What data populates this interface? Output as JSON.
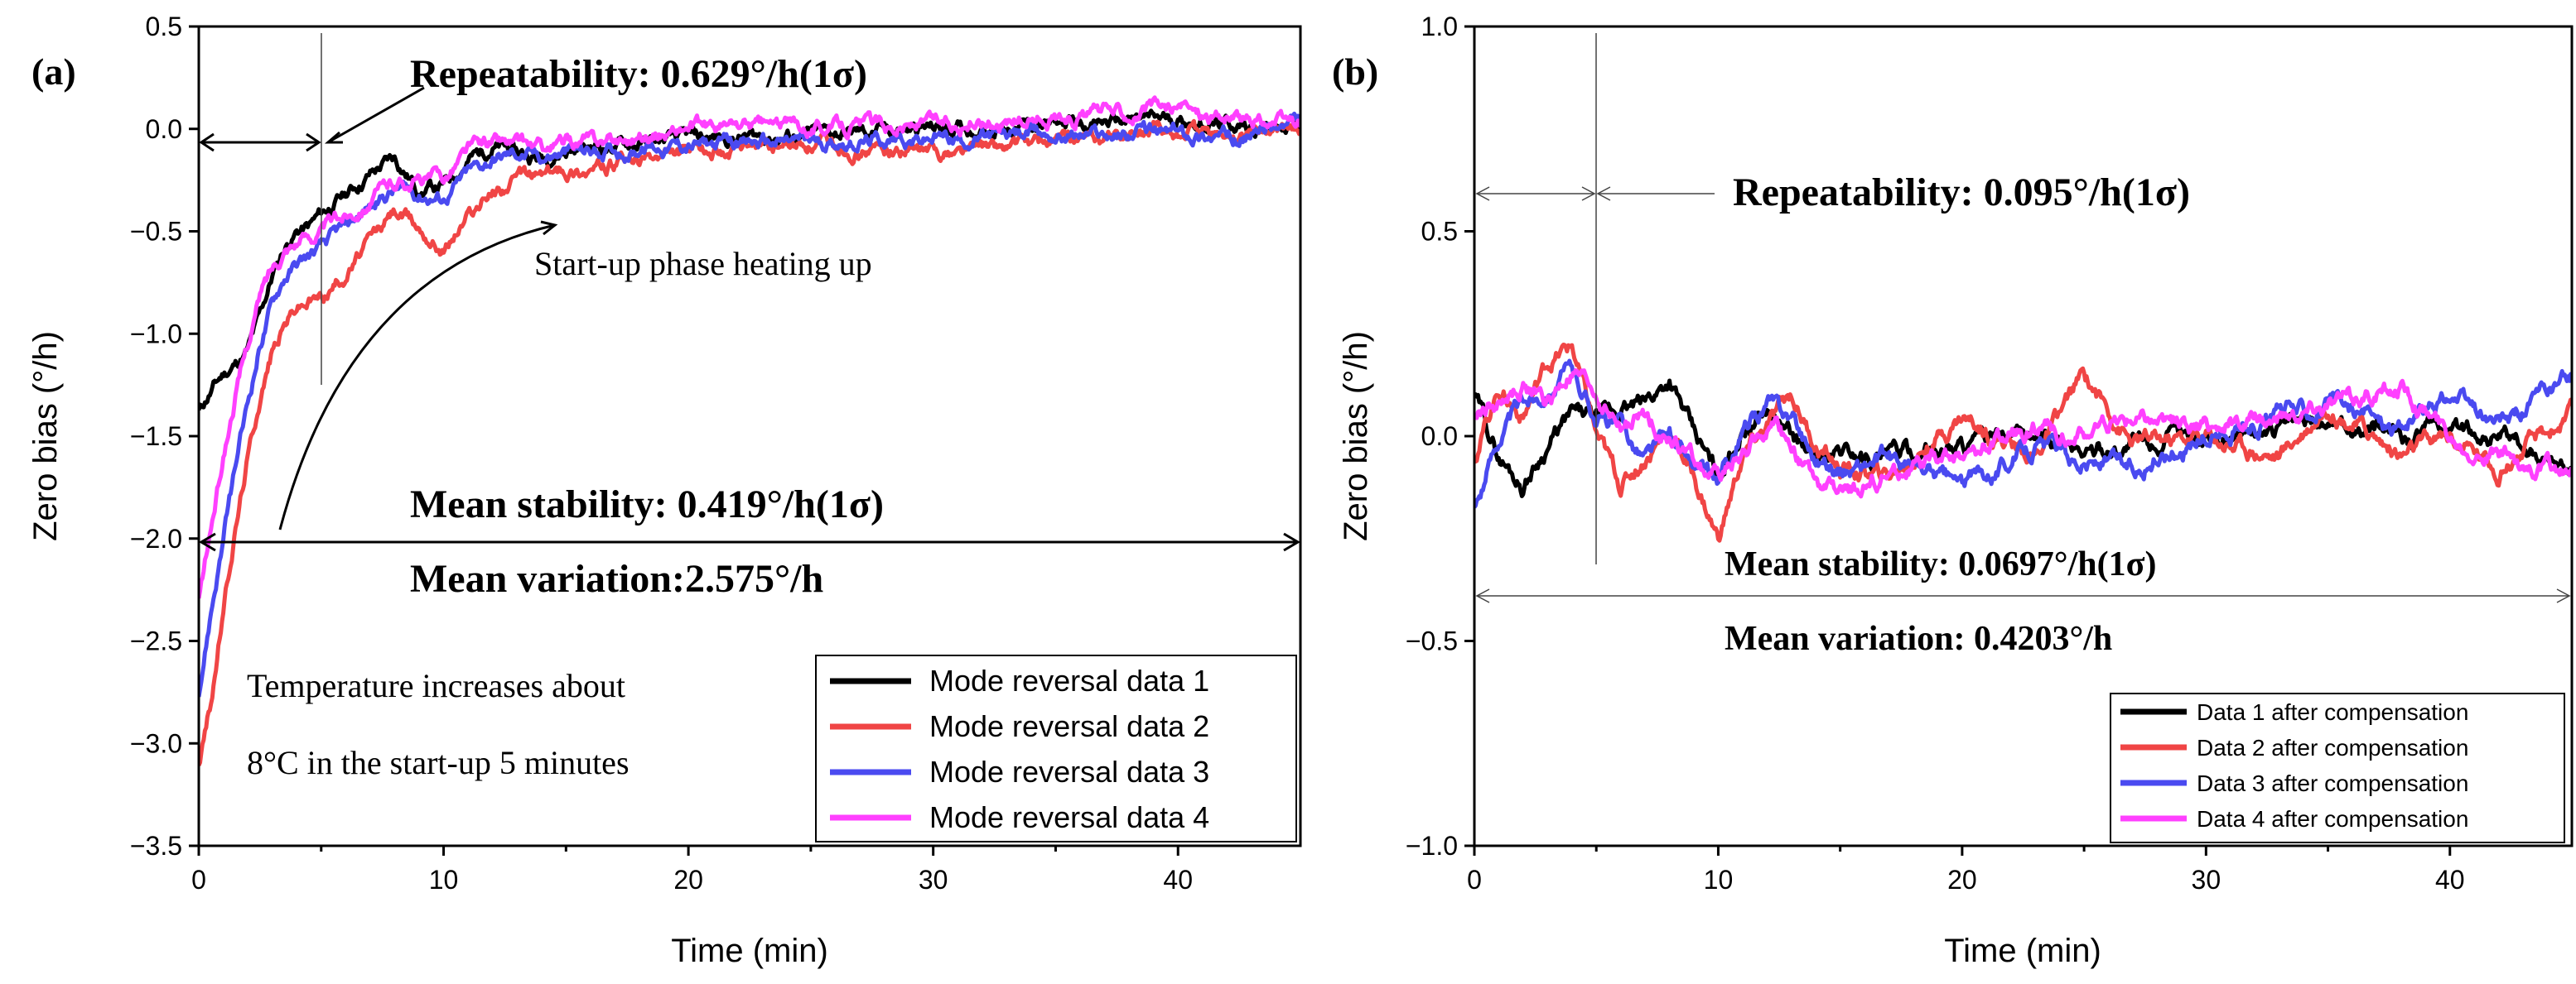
{
  "chart_data": [
    {
      "type": "line",
      "panel_label": "(a)",
      "xlabel": "Time (min)",
      "ylabel": "Zero bias (°/h)",
      "xlim": [
        0,
        45
      ],
      "ylim": [
        -3.5,
        0.5
      ],
      "xticks": [
        0,
        10,
        20,
        30,
        40
      ],
      "xtick_labels": [
        "0",
        "10",
        "20",
        "30",
        "40"
      ],
      "yticks": [
        0.5,
        0,
        -0.5,
        -1,
        -1.5,
        -2,
        -2.5,
        -3,
        -3.5
      ],
      "ytick_labels": [
        "0.5",
        "0.0",
        "−0.5",
        "−1.0",
        "−1.5",
        "−2.0",
        "−2.5",
        "−3.0",
        "−3.5"
      ],
      "annotations": {
        "repeatability": "Repeatability: 0.629°/h(1σ)",
        "startup": "Start-up phase heating up",
        "mean_stability": "Mean stability: 0.419°/h(1σ)",
        "mean_variation": "Mean variation:2.575°/h",
        "temp_line1": "Temperature increases about",
        "temp_line2": "8°C in the start-up 5 minutes"
      },
      "series": [
        {
          "name": "Mode reversal data 1",
          "color": "#000000",
          "x": [
            0,
            0.5,
            1,
            1.5,
            2,
            2.5,
            3,
            3.5,
            4,
            4.5,
            5,
            6,
            7,
            8,
            9,
            10,
            11,
            12,
            13,
            14,
            15,
            17,
            20,
            25,
            30,
            35,
            40,
            42,
            45
          ],
          "y": [
            -1.38,
            -1.28,
            -1.2,
            -1.15,
            -1.08,
            -0.92,
            -0.72,
            -0.58,
            -0.5,
            -0.48,
            -0.42,
            -0.32,
            -0.22,
            -0.14,
            -0.3,
            -0.28,
            -0.15,
            -0.08,
            -0.12,
            -0.14,
            -0.1,
            -0.08,
            -0.05,
            -0.03,
            0.0,
            0.02,
            0.05,
            0.02,
            0.0
          ]
        },
        {
          "name": "Mode reversal data 2",
          "color": "#f04545",
          "x": [
            0,
            0.5,
            1,
            1.5,
            2,
            2.5,
            3,
            3.5,
            4,
            4.5,
            5,
            6,
            7,
            8,
            9,
            10,
            11,
            12,
            13,
            14,
            15,
            17,
            20,
            25,
            30,
            35,
            40,
            42,
            45
          ],
          "y": [
            -3.1,
            -2.8,
            -2.35,
            -1.95,
            -1.6,
            -1.3,
            -1.08,
            -0.95,
            -0.86,
            -0.84,
            -0.82,
            -0.7,
            -0.55,
            -0.4,
            -0.48,
            -0.58,
            -0.42,
            -0.3,
            -0.25,
            -0.22,
            -0.2,
            -0.18,
            -0.12,
            -0.08,
            -0.12,
            -0.06,
            -0.02,
            -0.05,
            0.0
          ]
        },
        {
          "name": "Mode reversal data 3",
          "color": "#4a4af0",
          "x": [
            0,
            0.5,
            1,
            1.5,
            2,
            2.5,
            3,
            3.5,
            4,
            4.5,
            5,
            6,
            7,
            8,
            9,
            10,
            11,
            12,
            13,
            14,
            15,
            17,
            20,
            25,
            30,
            35,
            40,
            42,
            45
          ],
          "y": [
            -2.75,
            -2.35,
            -2.0,
            -1.65,
            -1.35,
            -1.05,
            -0.85,
            -0.72,
            -0.66,
            -0.62,
            -0.58,
            -0.48,
            -0.38,
            -0.3,
            -0.32,
            -0.34,
            -0.22,
            -0.15,
            -0.12,
            -0.14,
            -0.12,
            -0.1,
            -0.08,
            -0.06,
            -0.05,
            -0.03,
            -0.02,
            -0.04,
            0.02
          ]
        },
        {
          "name": "Mode reversal data 4",
          "color": "#ff40ff",
          "x": [
            0,
            0.5,
            1,
            1.5,
            2,
            2.5,
            3,
            3.5,
            4,
            4.5,
            5,
            6,
            7,
            8,
            9,
            10,
            11,
            12,
            13,
            14,
            15,
            17,
            20,
            25,
            30,
            35,
            40,
            42,
            45
          ],
          "y": [
            -2.3,
            -1.95,
            -1.6,
            -1.3,
            -1.05,
            -0.82,
            -0.68,
            -0.58,
            -0.54,
            -0.52,
            -0.5,
            -0.42,
            -0.34,
            -0.26,
            -0.25,
            -0.24,
            -0.1,
            -0.06,
            -0.08,
            -0.1,
            -0.07,
            -0.05,
            0.0,
            0.02,
            0.02,
            0.06,
            0.1,
            0.05,
            0.02
          ]
        }
      ]
    },
    {
      "type": "line",
      "panel_label": "(b)",
      "xlabel": "Time (min)",
      "ylabel": "Zero bias (°/h)",
      "xlim": [
        0,
        45
      ],
      "ylim": [
        -1.0,
        1.0
      ],
      "xticks": [
        0,
        10,
        20,
        30,
        40
      ],
      "xtick_labels": [
        "0",
        "10",
        "20",
        "30",
        "40"
      ],
      "yticks": [
        1.0,
        0.5,
        0.0,
        -0.5,
        -1.0
      ],
      "ytick_labels": [
        "1.0",
        "0.5",
        "0.0",
        "−0.5",
        "−1.0"
      ],
      "annotations": {
        "repeatability": "Repeatability: 0.095°/h(1σ)",
        "mean_stability": "Mean stability: 0.0697°/h(1σ)",
        "mean_variation": "Mean variation: 0.4203°/h"
      },
      "series": [
        {
          "name": "Data 1 after compensation",
          "color": "#000000",
          "x": [
            0,
            1,
            2,
            3,
            4,
            5,
            6,
            7,
            8,
            9,
            10,
            11,
            12,
            13,
            14,
            15,
            17,
            20,
            23,
            25,
            27,
            30,
            33,
            35,
            38,
            40,
            42,
            45
          ],
          "y": [
            0.1,
            -0.05,
            -0.12,
            -0.02,
            0.05,
            0.04,
            0.06,
            0.08,
            0.14,
            0.0,
            -0.1,
            0.02,
            0.06,
            0.0,
            -0.06,
            -0.04,
            -0.05,
            -0.02,
            0.0,
            -0.04,
            -0.02,
            0.0,
            0.02,
            0.04,
            0.0,
            0.02,
            0.0,
            -0.08
          ]
        },
        {
          "name": "Data 2 after compensation",
          "color": "#f04545",
          "x": [
            0,
            1,
            2,
            3,
            4,
            5,
            6,
            7,
            8,
            9,
            10,
            11,
            12,
            13,
            14,
            15,
            17,
            20,
            23,
            25,
            27,
            30,
            33,
            35,
            38,
            40,
            42,
            45
          ],
          "y": [
            -0.05,
            0.12,
            0.05,
            0.18,
            0.22,
            0.0,
            -0.12,
            -0.05,
            0.02,
            -0.1,
            -0.25,
            -0.05,
            0.02,
            0.1,
            -0.02,
            -0.08,
            -0.1,
            0.05,
            -0.05,
            0.15,
            -0.02,
            0.0,
            -0.05,
            0.08,
            -0.05,
            0.0,
            -0.08,
            0.05
          ]
        },
        {
          "name": "Data 3 after compensation",
          "color": "#4a4af0",
          "x": [
            0,
            1,
            2,
            3,
            4,
            5,
            6,
            7,
            8,
            9,
            10,
            11,
            12,
            13,
            14,
            15,
            17,
            20,
            23,
            25,
            27,
            30,
            33,
            35,
            38,
            40,
            42,
            45
          ],
          "y": [
            -0.18,
            0.0,
            0.08,
            0.12,
            0.16,
            0.05,
            0.02,
            -0.05,
            0.0,
            -0.08,
            -0.12,
            0.0,
            0.08,
            0.05,
            -0.05,
            -0.08,
            -0.06,
            -0.12,
            -0.02,
            -0.06,
            -0.08,
            0.0,
            0.05,
            0.08,
            0.02,
            0.1,
            0.02,
            0.15
          ]
        },
        {
          "name": "Data 4 after compensation",
          "color": "#ff40ff",
          "x": [
            0,
            1,
            2,
            3,
            4,
            5,
            6,
            7,
            8,
            9,
            10,
            11,
            12,
            13,
            14,
            15,
            17,
            20,
            23,
            25,
            27,
            30,
            33,
            35,
            38,
            40,
            42,
            45
          ],
          "y": [
            0.05,
            0.08,
            0.12,
            0.08,
            0.15,
            0.1,
            0.02,
            0.05,
            0.0,
            -0.06,
            -0.1,
            -0.05,
            0.02,
            -0.02,
            -0.12,
            -0.15,
            -0.1,
            -0.05,
            0.02,
            0.0,
            0.05,
            0.02,
            0.05,
            0.08,
            0.12,
            0.0,
            -0.05,
            -0.1
          ]
        }
      ]
    }
  ]
}
